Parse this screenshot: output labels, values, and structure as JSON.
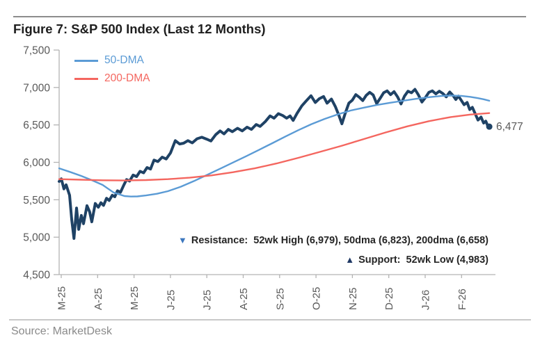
{
  "header": {
    "title": "Figure 7: S&P 500 Index (Last 12 Months)"
  },
  "footer": {
    "source": "Source: MarketDesk"
  },
  "colors": {
    "price": "#1f4265",
    "dma50": "#5b9bd5",
    "dma200": "#f4665f",
    "axis": "#b3b3b3",
    "tick_label": "#595959",
    "resistance_marker": "#3b76be",
    "support_marker": "#1f3864"
  },
  "chart_data": {
    "type": "line",
    "title": "S&P 500 Index (Last 12 Months)",
    "grid": false,
    "legend_position": "top-left-inside",
    "y_range": [
      4500,
      7500
    ],
    "y_ticks": [
      {
        "v": 7500,
        "label": "7,500"
      },
      {
        "v": 7000,
        "label": "7,000"
      },
      {
        "v": 6500,
        "label": "6,500"
      },
      {
        "v": 6000,
        "label": "6,000"
      },
      {
        "v": 5500,
        "label": "5,500"
      },
      {
        "v": 5000,
        "label": "5,000"
      },
      {
        "v": 4500,
        "label": "4,500"
      }
    ],
    "x_labels": [
      "M-25",
      "A-25",
      "M-25",
      "J-25",
      "J-25",
      "A-25",
      "S-25",
      "O-25",
      "N-25",
      "D-25",
      "J-26",
      "F-26"
    ],
    "legend": [
      {
        "name": "50-DMA",
        "color": "#5b9bd5"
      },
      {
        "name": "200-DMA",
        "color": "#f4665f"
      }
    ],
    "last_price_label": "6,477",
    "key_levels": {
      "wk52_high": 6979,
      "wk52_low": 4983,
      "dma50": 6823,
      "dma200": 6658,
      "last_price": 6477
    },
    "annotations": [
      {
        "marker": "▼",
        "marker_color": "#3b76be",
        "text": "Resistance:  52wk High (6,979), 50dma (6,823), 200dma (6,658)"
      },
      {
        "marker": "▲",
        "marker_color": "#1f3864",
        "text": "Support:  52wk Low (4,983)"
      }
    ],
    "series": [
      {
        "name": "S&P 500",
        "color": "#1f4265",
        "width": 4,
        "end_dot": true,
        "points": [
          [
            0.0,
            5745
          ],
          [
            0.005,
            5780
          ],
          [
            0.011,
            5645
          ],
          [
            0.016,
            5700
          ],
          [
            0.024,
            5560
          ],
          [
            0.029,
            5230
          ],
          [
            0.034,
            4983
          ],
          [
            0.04,
            5390
          ],
          [
            0.045,
            5105
          ],
          [
            0.051,
            5290
          ],
          [
            0.056,
            5180
          ],
          [
            0.064,
            5420
          ],
          [
            0.07,
            5340
          ],
          [
            0.075,
            5205
          ],
          [
            0.083,
            5450
          ],
          [
            0.09,
            5400
          ],
          [
            0.096,
            5460
          ],
          [
            0.102,
            5425
          ],
          [
            0.109,
            5520
          ],
          [
            0.115,
            5490
          ],
          [
            0.122,
            5560
          ],
          [
            0.128,
            5540
          ],
          [
            0.134,
            5620
          ],
          [
            0.141,
            5600
          ],
          [
            0.149,
            5700
          ],
          [
            0.155,
            5770
          ],
          [
            0.162,
            5750
          ],
          [
            0.17,
            5830
          ],
          [
            0.178,
            5810
          ],
          [
            0.186,
            5880
          ],
          [
            0.194,
            5860
          ],
          [
            0.202,
            5930
          ],
          [
            0.21,
            5910
          ],
          [
            0.218,
            6030
          ],
          [
            0.227,
            6010
          ],
          [
            0.237,
            6070
          ],
          [
            0.246,
            6045
          ],
          [
            0.256,
            6125
          ],
          [
            0.267,
            6290
          ],
          [
            0.277,
            6245
          ],
          [
            0.286,
            6255
          ],
          [
            0.296,
            6290
          ],
          [
            0.306,
            6260
          ],
          [
            0.317,
            6315
          ],
          [
            0.328,
            6335
          ],
          [
            0.339,
            6310
          ],
          [
            0.349,
            6285
          ],
          [
            0.36,
            6370
          ],
          [
            0.37,
            6420
          ],
          [
            0.379,
            6380
          ],
          [
            0.389,
            6440
          ],
          [
            0.398,
            6410
          ],
          [
            0.41,
            6455
          ],
          [
            0.421,
            6420
          ],
          [
            0.432,
            6470
          ],
          [
            0.442,
            6440
          ],
          [
            0.453,
            6505
          ],
          [
            0.462,
            6480
          ],
          [
            0.474,
            6545
          ],
          [
            0.485,
            6620
          ],
          [
            0.494,
            6590
          ],
          [
            0.504,
            6650
          ],
          [
            0.514,
            6625
          ],
          [
            0.523,
            6590
          ],
          [
            0.531,
            6620
          ],
          [
            0.538,
            6560
          ],
          [
            0.547,
            6655
          ],
          [
            0.558,
            6755
          ],
          [
            0.568,
            6820
          ],
          [
            0.579,
            6890
          ],
          [
            0.589,
            6800
          ],
          [
            0.598,
            6850
          ],
          [
            0.608,
            6880
          ],
          [
            0.616,
            6790
          ],
          [
            0.626,
            6845
          ],
          [
            0.635,
            6745
          ],
          [
            0.643,
            6630
          ],
          [
            0.65,
            6515
          ],
          [
            0.658,
            6660
          ],
          [
            0.666,
            6790
          ],
          [
            0.674,
            6830
          ],
          [
            0.682,
            6905
          ],
          [
            0.69,
            6870
          ],
          [
            0.698,
            6825
          ],
          [
            0.706,
            6895
          ],
          [
            0.714,
            6935
          ],
          [
            0.722,
            6900
          ],
          [
            0.73,
            6785
          ],
          [
            0.738,
            6855
          ],
          [
            0.746,
            6930
          ],
          [
            0.754,
            6955
          ],
          [
            0.762,
            6905
          ],
          [
            0.77,
            6945
          ],
          [
            0.778,
            6875
          ],
          [
            0.786,
            6780
          ],
          [
            0.794,
            6885
          ],
          [
            0.802,
            6950
          ],
          [
            0.81,
            6930
          ],
          [
            0.818,
            6975
          ],
          [
            0.826,
            6900
          ],
          [
            0.834,
            6805
          ],
          [
            0.842,
            6865
          ],
          [
            0.85,
            6935
          ],
          [
            0.858,
            6955
          ],
          [
            0.866,
            6915
          ],
          [
            0.874,
            6950
          ],
          [
            0.882,
            6920
          ],
          [
            0.89,
            6875
          ],
          [
            0.898,
            6940
          ],
          [
            0.906,
            6890
          ],
          [
            0.912,
            6840
          ],
          [
            0.918,
            6885
          ],
          [
            0.925,
            6825
          ],
          [
            0.931,
            6770
          ],
          [
            0.938,
            6800
          ],
          [
            0.944,
            6705
          ],
          [
            0.95,
            6735
          ],
          [
            0.957,
            6645
          ],
          [
            0.963,
            6565
          ],
          [
            0.97,
            6605
          ],
          [
            0.976,
            6525
          ],
          [
            0.981,
            6550
          ],
          [
            0.986,
            6480
          ],
          [
            0.989,
            6477
          ]
        ]
      },
      {
        "name": "50-DMA",
        "color": "#5b9bd5",
        "width": 2.4,
        "end_dot": false,
        "points": [
          [
            0.0,
            5920
          ],
          [
            0.025,
            5872
          ],
          [
            0.05,
            5820
          ],
          [
            0.075,
            5762
          ],
          [
            0.1,
            5698
          ],
          [
            0.125,
            5598
          ],
          [
            0.15,
            5550
          ],
          [
            0.165,
            5543
          ],
          [
            0.18,
            5545
          ],
          [
            0.2,
            5558
          ],
          [
            0.225,
            5580
          ],
          [
            0.25,
            5615
          ],
          [
            0.28,
            5675
          ],
          [
            0.31,
            5750
          ],
          [
            0.34,
            5832
          ],
          [
            0.37,
            5915
          ],
          [
            0.4,
            5998
          ],
          [
            0.43,
            6082
          ],
          [
            0.46,
            6168
          ],
          [
            0.49,
            6255
          ],
          [
            0.52,
            6345
          ],
          [
            0.55,
            6430
          ],
          [
            0.58,
            6510
          ],
          [
            0.61,
            6580
          ],
          [
            0.64,
            6640
          ],
          [
            0.67,
            6692
          ],
          [
            0.7,
            6730
          ],
          [
            0.73,
            6765
          ],
          [
            0.76,
            6795
          ],
          [
            0.79,
            6822
          ],
          [
            0.82,
            6848
          ],
          [
            0.85,
            6870
          ],
          [
            0.88,
            6888
          ],
          [
            0.905,
            6893
          ],
          [
            0.925,
            6888
          ],
          [
            0.945,
            6875
          ],
          [
            0.962,
            6858
          ],
          [
            0.976,
            6842
          ],
          [
            0.989,
            6823
          ]
        ]
      },
      {
        "name": "200-DMA",
        "color": "#f4665f",
        "width": 2.4,
        "end_dot": false,
        "points": [
          [
            0.0,
            5775
          ],
          [
            0.05,
            5768
          ],
          [
            0.1,
            5760
          ],
          [
            0.15,
            5758
          ],
          [
            0.2,
            5763
          ],
          [
            0.25,
            5775
          ],
          [
            0.3,
            5795
          ],
          [
            0.35,
            5825
          ],
          [
            0.4,
            5868
          ],
          [
            0.45,
            5920
          ],
          [
            0.5,
            5985
          ],
          [
            0.55,
            6060
          ],
          [
            0.6,
            6140
          ],
          [
            0.65,
            6222
          ],
          [
            0.7,
            6310
          ],
          [
            0.75,
            6398
          ],
          [
            0.8,
            6480
          ],
          [
            0.85,
            6550
          ],
          [
            0.9,
            6605
          ],
          [
            0.945,
            6638
          ],
          [
            0.989,
            6658
          ]
        ]
      }
    ]
  }
}
